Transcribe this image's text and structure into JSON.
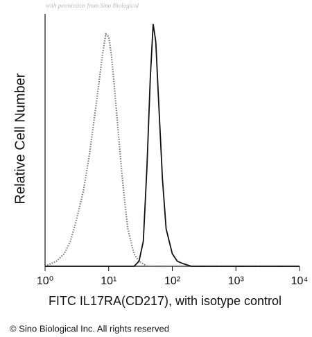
{
  "chart_data": {
    "type": "line",
    "watermark": "with permission from Sino Biological",
    "ylabel": "Relative Cell Number",
    "xlabel": "FITC IL17RA(CD217), with isotype control",
    "footer": "© Sino Biological Inc. All rights reserved",
    "log_x": true,
    "xlim": [
      1,
      10000
    ],
    "ylim": [
      0,
      100
    ],
    "xticks": [
      {
        "value": 1,
        "label": "10⁰"
      },
      {
        "value": 10,
        "label": "10¹"
      },
      {
        "value": 100,
        "label": "10²"
      },
      {
        "value": 1000,
        "label": "10³"
      },
      {
        "value": 10000,
        "label": "10⁴"
      }
    ],
    "x": [
      1,
      1.5,
      2,
      2.5,
      3,
      4,
      5,
      6,
      7,
      8,
      9,
      10,
      11,
      12,
      14,
      16,
      18,
      20,
      25,
      30,
      35,
      40,
      45,
      50,
      55,
      60,
      70,
      80,
      100,
      120,
      150,
      200,
      300,
      500,
      1000,
      10000
    ],
    "series": [
      {
        "name": "isotype control",
        "color": "#777777",
        "dashed": true,
        "values": [
          0,
          2,
          5,
          10,
          17,
          30,
          45,
          60,
          73,
          85,
          93,
          92,
          85,
          75,
          55,
          38,
          25,
          15,
          5,
          2,
          1,
          0,
          0,
          0,
          0,
          0,
          0,
          0,
          0,
          0,
          0,
          0,
          0,
          0,
          0,
          0
        ]
      },
      {
        "name": "IL17RA",
        "color": "#111111",
        "dashed": false,
        "values": [
          0,
          0,
          0,
          0,
          0,
          0,
          0,
          0,
          0,
          0,
          0,
          0,
          0,
          0,
          0,
          0,
          0,
          0,
          0,
          2,
          10,
          40,
          75,
          97,
          90,
          70,
          35,
          15,
          5,
          2,
          1,
          0,
          0,
          0,
          0,
          0
        ]
      }
    ]
  }
}
